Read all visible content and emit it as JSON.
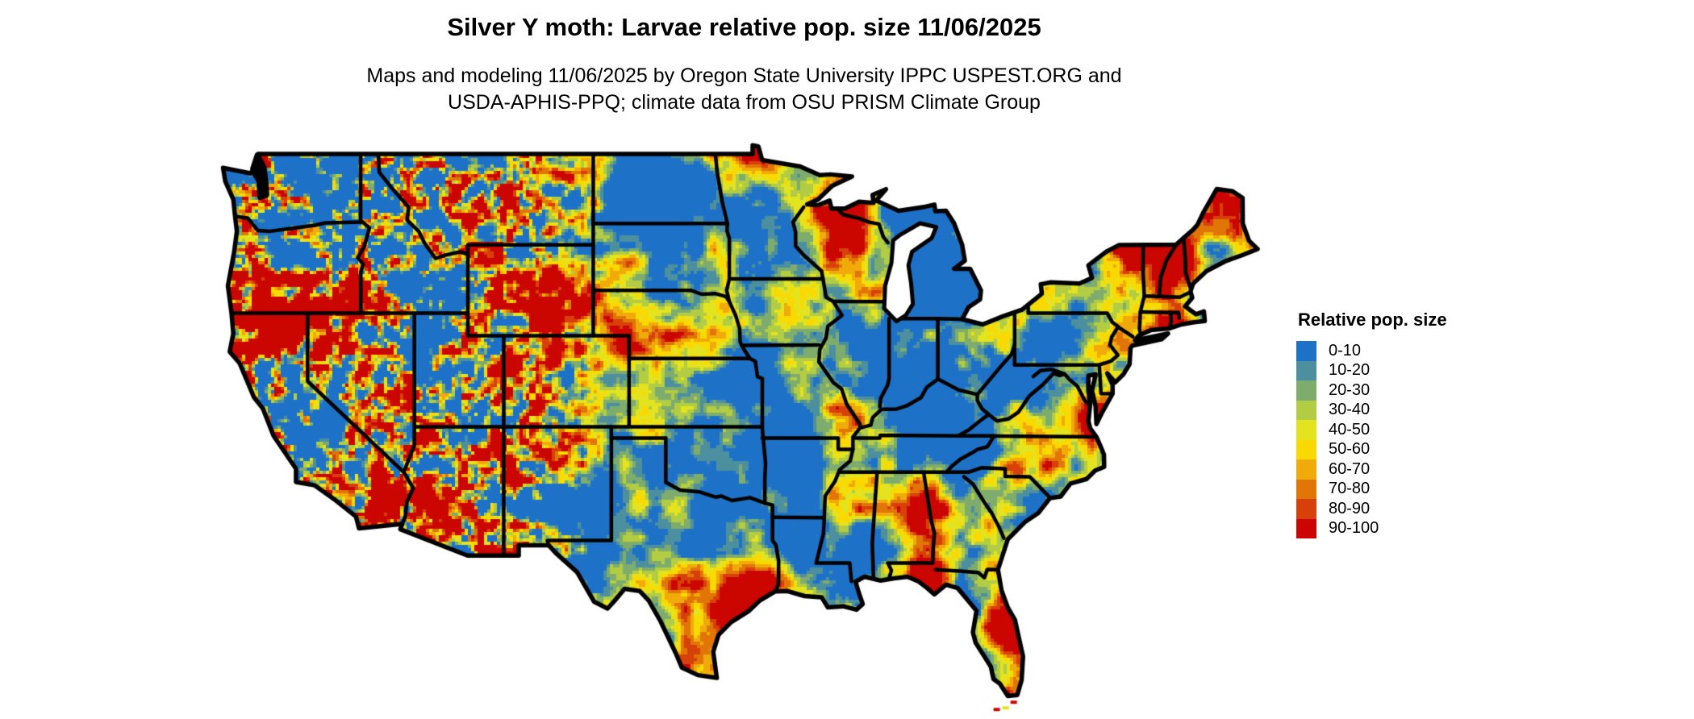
{
  "header": {
    "title": "Silver Y moth: Larvae relative pop. size 11/06/2025",
    "subtitle_line1": "Maps and modeling 11/06/2025 by Oregon State University IPPC USPEST.ORG and",
    "subtitle_line2": "USDA-APHIS-PPQ; climate data from OSU PRISM Climate Group"
  },
  "legend": {
    "title": "Relative pop. size",
    "entries": [
      {
        "label": "0-10",
        "color": "#1d72c7"
      },
      {
        "label": "10-20",
        "color": "#4c8f9e"
      },
      {
        "label": "20-30",
        "color": "#7dac6d"
      },
      {
        "label": "30-40",
        "color": "#b2cc43"
      },
      {
        "label": "40-50",
        "color": "#e3e320"
      },
      {
        "label": "50-60",
        "color": "#fad900"
      },
      {
        "label": "60-70",
        "color": "#f0ab0a"
      },
      {
        "label": "70-80",
        "color": "#e17606"
      },
      {
        "label": "80-90",
        "color": "#d74008"
      },
      {
        "label": "90-100",
        "color": "#cb0500"
      }
    ]
  },
  "map": {
    "region": "Contiguous United States",
    "background_color": "#ffffff",
    "border_color": "#000000"
  }
}
